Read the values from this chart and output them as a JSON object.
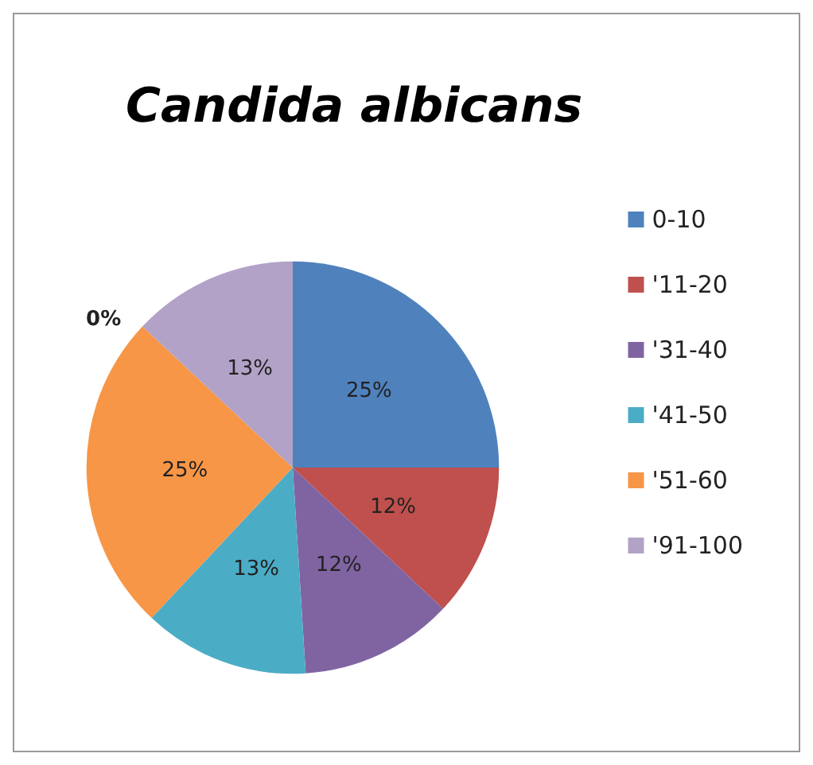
{
  "chart_data": {
    "type": "pie",
    "title": "Candida albicans",
    "categories": [
      "0-10",
      "'11-20",
      "'31-40",
      "'41-50",
      "'51-60",
      null,
      "'91-100"
    ],
    "values": [
      25,
      12,
      12,
      13,
      25,
      0,
      13
    ],
    "value_labels": [
      "25%",
      "12%",
      "12%",
      "13%",
      "25%",
      "0%",
      "13%"
    ],
    "colors": [
      "#4f81bd",
      "#c0504d",
      "#8064a2",
      "#4bacc6",
      "#f79646",
      "#9bbb59",
      "#b3a2c7"
    ],
    "legend": "right"
  }
}
